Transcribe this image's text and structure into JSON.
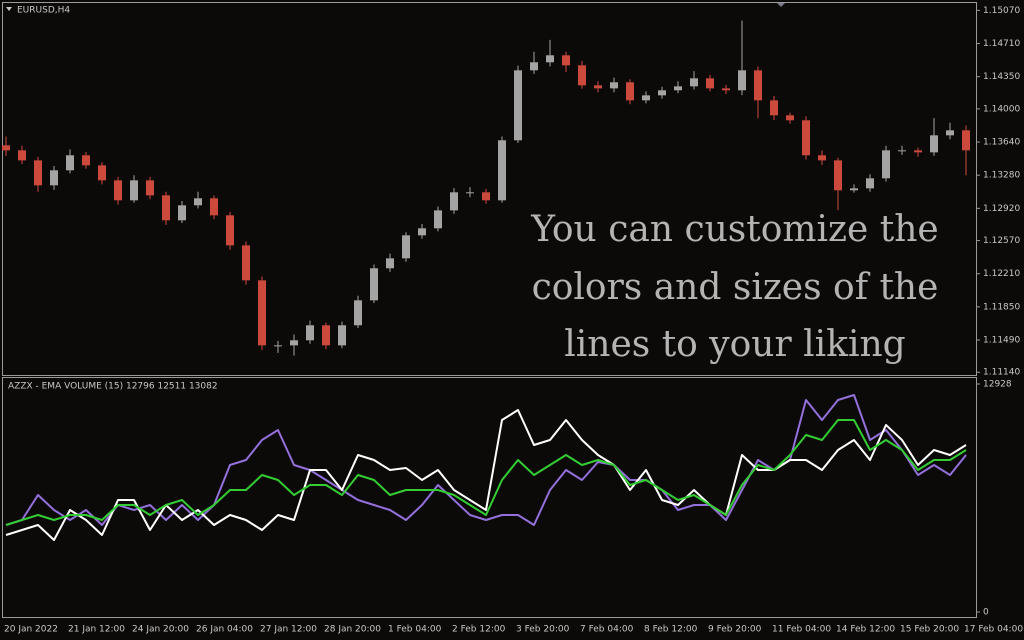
{
  "chart_data": [
    {
      "type": "candlestick",
      "title": "EURUSD,H4",
      "annotation": [
        "You can customize the",
        "colors and sizes of the",
        "lines to your liking"
      ],
      "up_color": "#a4a4a4",
      "down_color": "#cc4a3c",
      "ylim": [
        1.1111,
        1.1515
      ],
      "yticks": [
        {
          "value": 1.1507,
          "label": "1.15070"
        },
        {
          "value": 1.1471,
          "label": "1.14710"
        },
        {
          "value": 1.1435,
          "label": "1.14350"
        },
        {
          "value": 1.14,
          "label": "1.14000"
        },
        {
          "value": 1.1364,
          "label": "1.13640"
        },
        {
          "value": 1.1328,
          "label": "1.13280"
        },
        {
          "value": 1.1292,
          "label": "1.12920"
        },
        {
          "value": 1.1257,
          "label": "1.12570"
        },
        {
          "value": 1.1221,
          "label": "1.12210"
        },
        {
          "value": 1.1185,
          "label": "1.11850"
        },
        {
          "value": 1.1149,
          "label": "1.11490"
        },
        {
          "value": 1.1114,
          "label": "1.11140"
        }
      ],
      "open": [
        1.13604,
        1.1355,
        1.13441,
        1.1317,
        1.13333,
        1.13496,
        1.13387,
        1.13224,
        1.13007,
        1.13224,
        1.13061,
        1.1279,
        1.12953,
        1.13029,
        1.12844,
        1.12518,
        1.12138,
        1.11432,
        1.11432,
        1.11487,
        1.1165,
        1.11432,
        1.1165,
        1.11921,
        1.12269,
        1.12377,
        1.12627,
        1.12703,
        1.12898,
        1.13094,
        1.13094,
        1.13007,
        1.13659,
        1.14419,
        1.14506,
        1.14582,
        1.14473,
        1.14256,
        1.14223,
        1.14289,
        1.14093,
        1.14147,
        1.14202,
        1.14245,
        1.14332,
        1.14223,
        1.14202,
        1.14419,
        1.14093,
        1.1393,
        1.13876,
        1.13496,
        1.13441,
        1.13116,
        1.13137,
        1.13246,
        1.1355,
        1.1355,
        1.13528,
        1.13713,
        1.13767
      ],
      "high": [
        1.137,
        1.136,
        1.1348,
        1.1338,
        1.1356,
        1.1353,
        1.1342,
        1.1326,
        1.1328,
        1.1326,
        1.131,
        1.13,
        1.131,
        1.1306,
        1.1288,
        1.1256,
        1.1218,
        1.1148,
        1.1155,
        1.117,
        1.1168,
        1.1169,
        1.1197,
        1.1231,
        1.1243,
        1.1266,
        1.1275,
        1.1294,
        1.1314,
        1.1315,
        1.1313,
        1.137,
        1.1447,
        1.1462,
        1.1475,
        1.1462,
        1.1452,
        1.143,
        1.1434,
        1.1432,
        1.1419,
        1.1424,
        1.143,
        1.1441,
        1.1437,
        1.1426,
        1.1496,
        1.1446,
        1.1414,
        1.1396,
        1.1392,
        1.1355,
        1.1347,
        1.1318,
        1.1329,
        1.136,
        1.136,
        1.1358,
        1.139,
        1.1385,
        1.1382
      ],
      "low": [
        1.1349,
        1.134,
        1.131,
        1.1312,
        1.133,
        1.1335,
        1.1318,
        1.1296,
        1.1298,
        1.1302,
        1.1274,
        1.1276,
        1.1292,
        1.128,
        1.1247,
        1.1209,
        1.1138,
        1.1135,
        1.1132,
        1.1145,
        1.1139,
        1.114,
        1.1162,
        1.1189,
        1.1223,
        1.1234,
        1.1259,
        1.1267,
        1.1286,
        1.1304,
        1.1297,
        1.1298,
        1.1363,
        1.1438,
        1.1446,
        1.144,
        1.1422,
        1.1418,
        1.1418,
        1.1405,
        1.1406,
        1.1411,
        1.1417,
        1.1421,
        1.1419,
        1.1416,
        1.1415,
        1.139,
        1.1388,
        1.1384,
        1.1345,
        1.1339,
        1.129,
        1.1309,
        1.131,
        1.1321,
        1.135,
        1.1348,
        1.1349,
        1.1367,
        1.1328
      ],
      "close": [
        1.1355,
        1.13441,
        1.1317,
        1.13333,
        1.13496,
        1.13387,
        1.13224,
        1.13007,
        1.13224,
        1.13061,
        1.1279,
        1.12953,
        1.13029,
        1.12844,
        1.12518,
        1.12138,
        1.11432,
        1.11432,
        1.11487,
        1.1165,
        1.11432,
        1.1165,
        1.11921,
        1.12269,
        1.12377,
        1.12627,
        1.12703,
        1.12898,
        1.13094,
        1.13094,
        1.13007,
        1.13659,
        1.14419,
        1.14506,
        1.14582,
        1.14473,
        1.14256,
        1.14223,
        1.14289,
        1.14093,
        1.14147,
        1.14202,
        1.14245,
        1.14332,
        1.14223,
        1.14202,
        1.14419,
        1.14093,
        1.1393,
        1.13876,
        1.13496,
        1.13441,
        1.13116,
        1.13137,
        1.13246,
        1.1355,
        1.1355,
        1.13528,
        1.13713,
        1.13767,
        1.1355
      ]
    },
    {
      "type": "line",
      "title": "AZZX - EMA VOLUME (15) 12796 12511 13082",
      "categories": [
        "20 Jan 2022",
        null,
        null,
        null,
        "21 Jan 12:00",
        null,
        null,
        null,
        "24 Jan 20:00",
        null,
        null,
        null,
        "26 Jan 04:00",
        null,
        null,
        null,
        "27 Jan 12:00",
        null,
        null,
        null,
        "28 Jan 20:00",
        null,
        null,
        null,
        "1 Feb 04:00",
        null,
        null,
        null,
        "2 Feb 12:00",
        null,
        null,
        null,
        "3 Feb 20:00",
        null,
        null,
        null,
        "7 Feb 04:00",
        null,
        null,
        null,
        "8 Feb 12:00",
        null,
        null,
        null,
        "9 Feb 20:00",
        null,
        null,
        null,
        "11 Feb 04:00",
        null,
        null,
        null,
        "14 Feb 12:00",
        null,
        null,
        null,
        "15 Feb 20:00",
        null,
        null,
        null,
        "17 Feb 04:00"
      ],
      "ylim": [
        -340,
        13268
      ],
      "yticks": [
        0,
        12928
      ],
      "series": [
        {
          "color": "#9370db",
          "values": [
            4933,
            5216,
            6634,
            5783,
            5216,
            5783,
            4933,
            6067,
            5783,
            6067,
            5216,
            6067,
            5216,
            6067,
            8335,
            8618,
            9752,
            10319,
            8335,
            8051,
            7484,
            6917,
            6350,
            6067,
            5783,
            5216,
            6067,
            7201,
            6350,
            5500,
            5216,
            5500,
            5500,
            4933,
            6917,
            8051,
            7484,
            8505,
            8335,
            7484,
            7484,
            6917,
            5783,
            6067,
            6067,
            5216,
            6917,
            8618,
            8051,
            8618,
            12020,
            10886,
            12020,
            12304,
            9752,
            10319,
            9185,
            7768,
            8335,
            7768,
            8902
          ]
        },
        {
          "color": "#ffffff",
          "values": [
            4366,
            4649,
            4933,
            4082,
            5783,
            5216,
            4366,
            6350,
            6350,
            4649,
            6067,
            5216,
            5783,
            4933,
            5500,
            5216,
            4649,
            5500,
            5216,
            8051,
            8051,
            6917,
            8902,
            8618,
            8051,
            8165,
            7484,
            8051,
            6917,
            6350,
            5783,
            10886,
            11453,
            9469,
            9752,
            10886,
            9752,
            8902,
            8335,
            6917,
            8051,
            6350,
            6067,
            6917,
            6067,
            5500,
            8902,
            8051,
            8051,
            8618,
            8618,
            8051,
            9185,
            9752,
            8618,
            10603,
            9752,
            8335,
            9185,
            8902,
            9469
          ]
        },
        {
          "color": "#33cc33",
          "values": [
            4933,
            5216,
            5500,
            5216,
            5500,
            5500,
            5216,
            6067,
            6067,
            5500,
            6067,
            6350,
            5500,
            6067,
            6917,
            6917,
            7768,
            7484,
            6634,
            7201,
            7201,
            6634,
            7768,
            7484,
            6634,
            6917,
            6917,
            6917,
            6634,
            6067,
            5500,
            7484,
            8618,
            7768,
            8335,
            8902,
            8335,
            8618,
            8335,
            7201,
            7484,
            6917,
            6350,
            6634,
            6067,
            5500,
            7201,
            8335,
            8051,
            8902,
            10036,
            9752,
            10886,
            10886,
            9185,
            9752,
            9185,
            8051,
            8618,
            8618,
            9185
          ]
        }
      ]
    }
  ]
}
